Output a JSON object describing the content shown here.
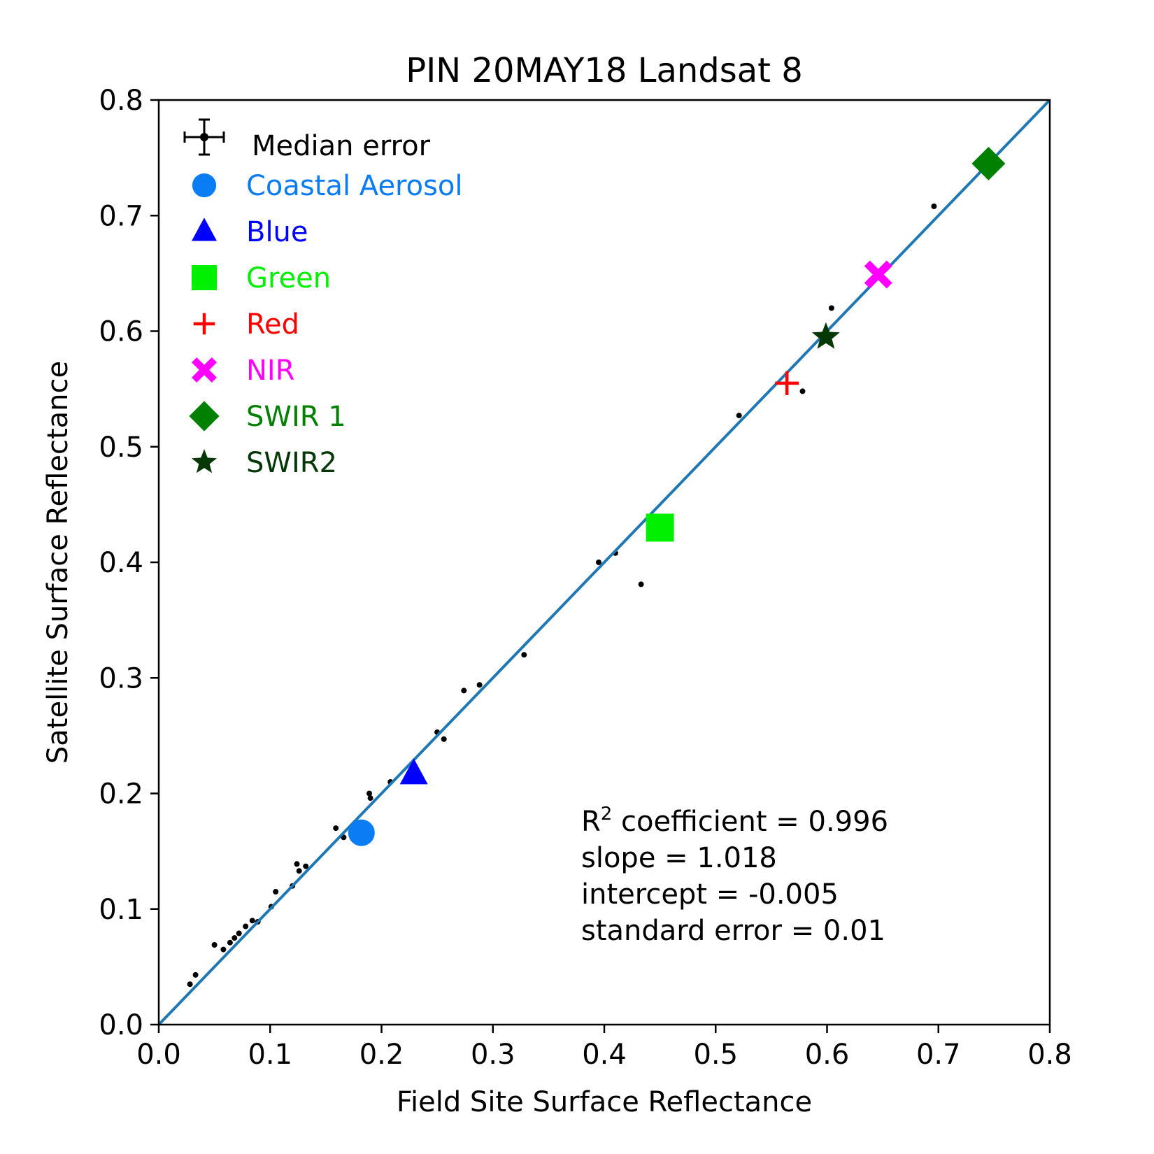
{
  "chart_data": {
    "type": "scatter",
    "title": "PIN 20MAY18 Landsat 8",
    "xlabel": "Field Site Surface Reflectance",
    "ylabel": "Satellite Surface Reflectance",
    "xlim": [
      0.0,
      0.8
    ],
    "ylim": [
      0.0,
      0.8
    ],
    "xticks": [
      "0.0",
      "0.1",
      "0.2",
      "0.3",
      "0.4",
      "0.5",
      "0.6",
      "0.7",
      "0.8"
    ],
    "yticks": [
      "0.0",
      "0.1",
      "0.2",
      "0.3",
      "0.4",
      "0.5",
      "0.6",
      "0.7",
      "0.8"
    ],
    "grid": false,
    "legend_position": "top-left",
    "fit_line": {
      "slope": 1.0,
      "intercept": 0.0,
      "color": "#1f77b4"
    },
    "median_error": {
      "label": "Median error",
      "color": "#000000"
    },
    "small_points": [
      [
        0.028,
        0.035
      ],
      [
        0.033,
        0.043
      ],
      [
        0.05,
        0.069
      ],
      [
        0.058,
        0.065
      ],
      [
        0.064,
        0.071
      ],
      [
        0.068,
        0.075
      ],
      [
        0.072,
        0.079
      ],
      [
        0.078,
        0.085
      ],
      [
        0.084,
        0.09
      ],
      [
        0.089,
        0.089
      ],
      [
        0.101,
        0.102
      ],
      [
        0.105,
        0.115
      ],
      [
        0.12,
        0.12
      ],
      [
        0.124,
        0.139
      ],
      [
        0.126,
        0.133
      ],
      [
        0.132,
        0.137
      ],
      [
        0.159,
        0.17
      ],
      [
        0.166,
        0.162
      ],
      [
        0.189,
        0.2
      ],
      [
        0.19,
        0.196
      ],
      [
        0.208,
        0.21
      ],
      [
        0.25,
        0.253
      ],
      [
        0.256,
        0.247
      ],
      [
        0.274,
        0.289
      ],
      [
        0.288,
        0.294
      ],
      [
        0.328,
        0.32
      ],
      [
        0.395,
        0.4
      ],
      [
        0.41,
        0.408
      ],
      [
        0.433,
        0.381
      ],
      [
        0.521,
        0.527
      ],
      [
        0.578,
        0.548
      ],
      [
        0.604,
        0.62
      ],
      [
        0.696,
        0.708
      ]
    ],
    "series": [
      {
        "name": "Coastal Aerosol",
        "marker": "circle",
        "color": "#0a7df5",
        "x": 0.182,
        "y": 0.166
      },
      {
        "name": "Blue",
        "marker": "triangle",
        "color": "#0000ff",
        "x": 0.229,
        "y": 0.217
      },
      {
        "name": "Green",
        "marker": "square",
        "color": "#00f000",
        "x": 0.45,
        "y": 0.43
      },
      {
        "name": "Red",
        "marker": "plus",
        "color": "#ff0000",
        "x": 0.564,
        "y": 0.555
      },
      {
        "name": "NIR",
        "marker": "x",
        "color": "#ff00ff",
        "x": 0.646,
        "y": 0.649
      },
      {
        "name": "SWIR 1",
        "marker": "diamond",
        "color": "#008000",
        "x": 0.745,
        "y": 0.745
      },
      {
        "name": "SWIR2",
        "marker": "star",
        "color": "#063806",
        "x": 0.599,
        "y": 0.595
      }
    ],
    "stats": {
      "r2_prefix": "R",
      "r2_sup": "2",
      "r2_text": " coefficient = 0.996",
      "slope": "slope = 1.018",
      "intercept": "intercept = -0.005",
      "std_error": "standard error = 0.01"
    }
  }
}
